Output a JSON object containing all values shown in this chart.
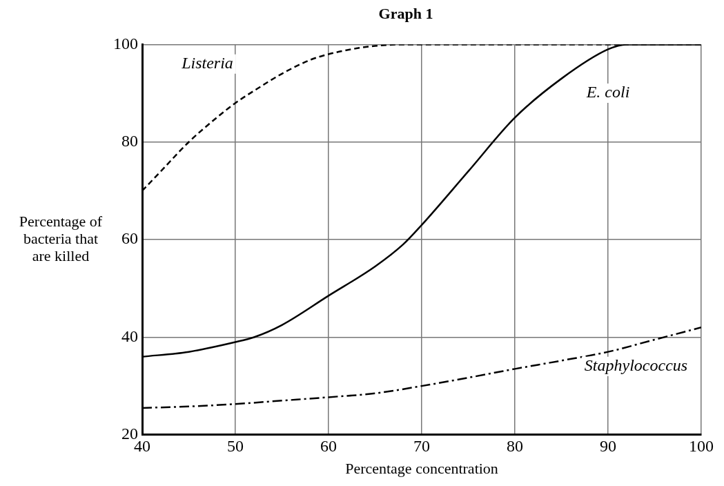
{
  "chart_data": {
    "type": "line",
    "title": "Graph 1",
    "xlabel": "Percentage concentration",
    "ylabel": "Percentage of bacteria that are killed",
    "xlim": [
      40,
      100
    ],
    "xticks": [
      40,
      50,
      60,
      70,
      80,
      90,
      100
    ],
    "ylim": [
      20,
      100
    ],
    "yticks": [
      20,
      40,
      60,
      80,
      100
    ],
    "grid": true,
    "legend": false,
    "marker": "none",
    "series": [
      {
        "name": "Listeria",
        "color": "#000000",
        "line_style": "dashed",
        "x": [
          40,
          42,
          45,
          48,
          50,
          52,
          55,
          58,
          60,
          63,
          65,
          68,
          70,
          80,
          90,
          100
        ],
        "values": [
          70,
          74,
          80,
          85,
          88,
          90.5,
          94,
          96.8,
          98,
          99.2,
          99.7,
          100,
          100,
          100,
          100,
          100
        ]
      },
      {
        "name": "E. coli",
        "color": "#000000",
        "line_style": "solid",
        "x": [
          40,
          45,
          50,
          52,
          55,
          60,
          65,
          68,
          70,
          75,
          80,
          85,
          90,
          92,
          100
        ],
        "values": [
          36,
          37,
          39,
          40,
          42.5,
          48.5,
          54.5,
          59,
          63,
          74,
          85,
          93,
          99,
          100,
          100
        ]
      },
      {
        "name": "Staphylococcus",
        "color": "#000000",
        "line_style": "dotted",
        "x": [
          40,
          45,
          50,
          55,
          60,
          65,
          70,
          75,
          80,
          85,
          90,
          95,
          100
        ],
        "values": [
          25.5,
          25.8,
          26.3,
          27,
          27.7,
          28.5,
          30,
          31.7,
          33.5,
          35.2,
          37,
          39.5,
          42
        ]
      }
    ]
  }
}
